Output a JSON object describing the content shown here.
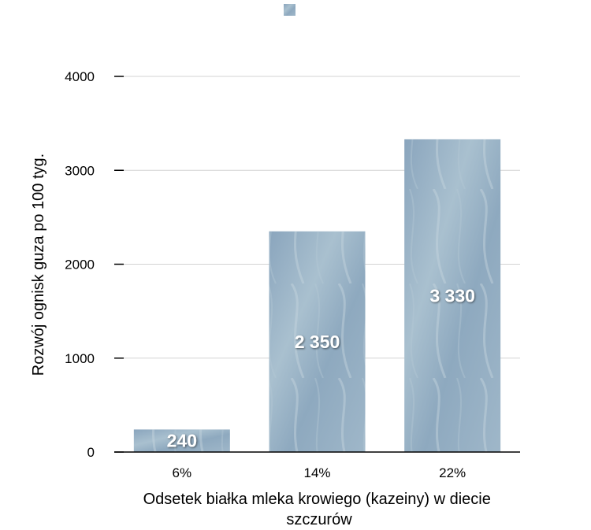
{
  "chart_data": {
    "type": "bar",
    "categories": [
      "6%",
      "14%",
      "22%"
    ],
    "values": [
      240,
      2350,
      3330
    ],
    "data_labels": [
      "240",
      "2 350",
      "3 330"
    ],
    "xlabel_lines": [
      "Odsetek białka mleka krowiego (kazeiny) w diecie",
      "szczurów"
    ],
    "ylabel": "Rozwój  ognisk guza po 100 tyg.",
    "ylim": [
      0,
      4000
    ],
    "yticks": [
      "0",
      "1000",
      "2000",
      "3000",
      "4000"
    ],
    "ytick_values": [
      0,
      1000,
      2000,
      3000,
      4000
    ],
    "grid": true,
    "legend": "top-center",
    "bar_color": "#8fa9bf"
  }
}
